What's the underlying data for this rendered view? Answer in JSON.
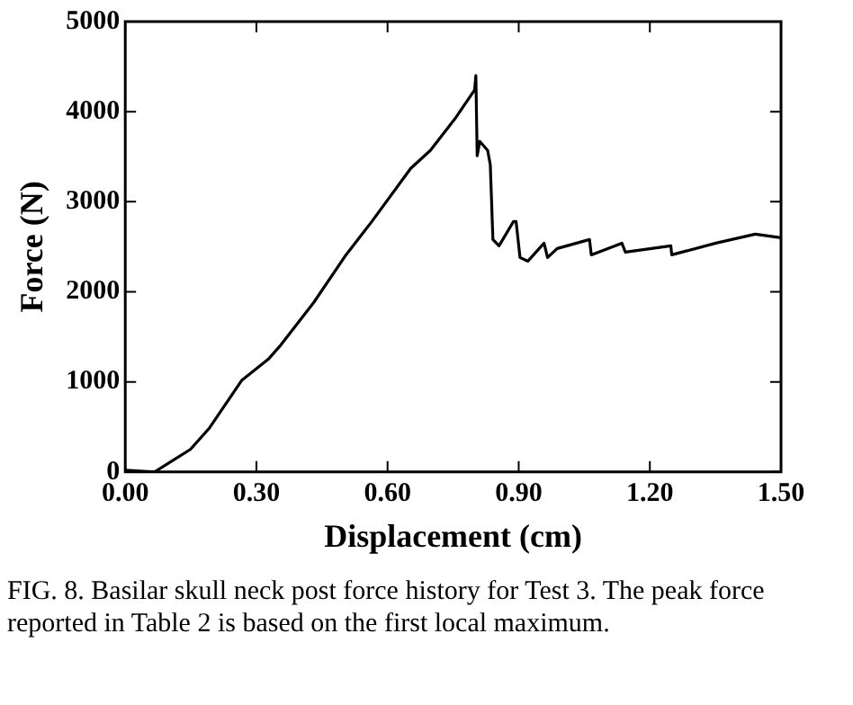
{
  "chart_data": {
    "type": "line",
    "xlabel": "Displacement (cm)",
    "ylabel": "Force (N)",
    "annotations": [
      "FIG. 8. Basilar skull neck post force history for Test 3. The peak force reported in Table 2 is based on the first local maximum."
    ],
    "xlim": [
      0,
      1.5
    ],
    "xticks": [
      {
        "value": 0,
        "label": "0.00"
      },
      {
        "value": 0.3,
        "label": "0.30"
      },
      {
        "value": 0.6,
        "label": "0.60"
      },
      {
        "value": 0.9,
        "label": "0.90"
      },
      {
        "value": 1.2,
        "label": "1.20"
      },
      {
        "value": 1.5,
        "label": "1.50"
      }
    ],
    "ylim": [
      0,
      5000
    ],
    "yticks": [
      0,
      1000,
      2000,
      3000,
      4000,
      5000
    ],
    "grid": false,
    "legend": false,
    "marker": "none",
    "line_style": "solid",
    "series": [
      {
        "color": "#000000",
        "x": [
          0,
          0.067,
          0.149,
          0.193,
          0.267,
          0.327,
          0.356,
          0.431,
          0.505,
          0.564,
          0.653,
          0.698,
          0.757,
          0.799,
          0.802,
          0.805,
          0.811,
          0.829,
          0.835,
          0.841,
          0.855,
          0.888,
          0.894,
          0.903,
          0.921,
          0.958,
          0.966,
          0.988,
          1.062,
          1.066,
          1.136,
          1.144,
          1.248,
          1.25,
          1.351,
          1.441,
          1.5
        ],
        "values": [
          20,
          0,
          250,
          490,
          1020,
          1250,
          1410,
          1880,
          2410,
          2780,
          3370,
          3570,
          3940,
          4240,
          4400,
          3510,
          3670,
          3570,
          3410,
          2580,
          2510,
          2780,
          2780,
          2380,
          2340,
          2540,
          2380,
          2480,
          2580,
          2410,
          2540,
          2440,
          2510,
          2410,
          2540,
          2640,
          2600
        ]
      }
    ]
  }
}
